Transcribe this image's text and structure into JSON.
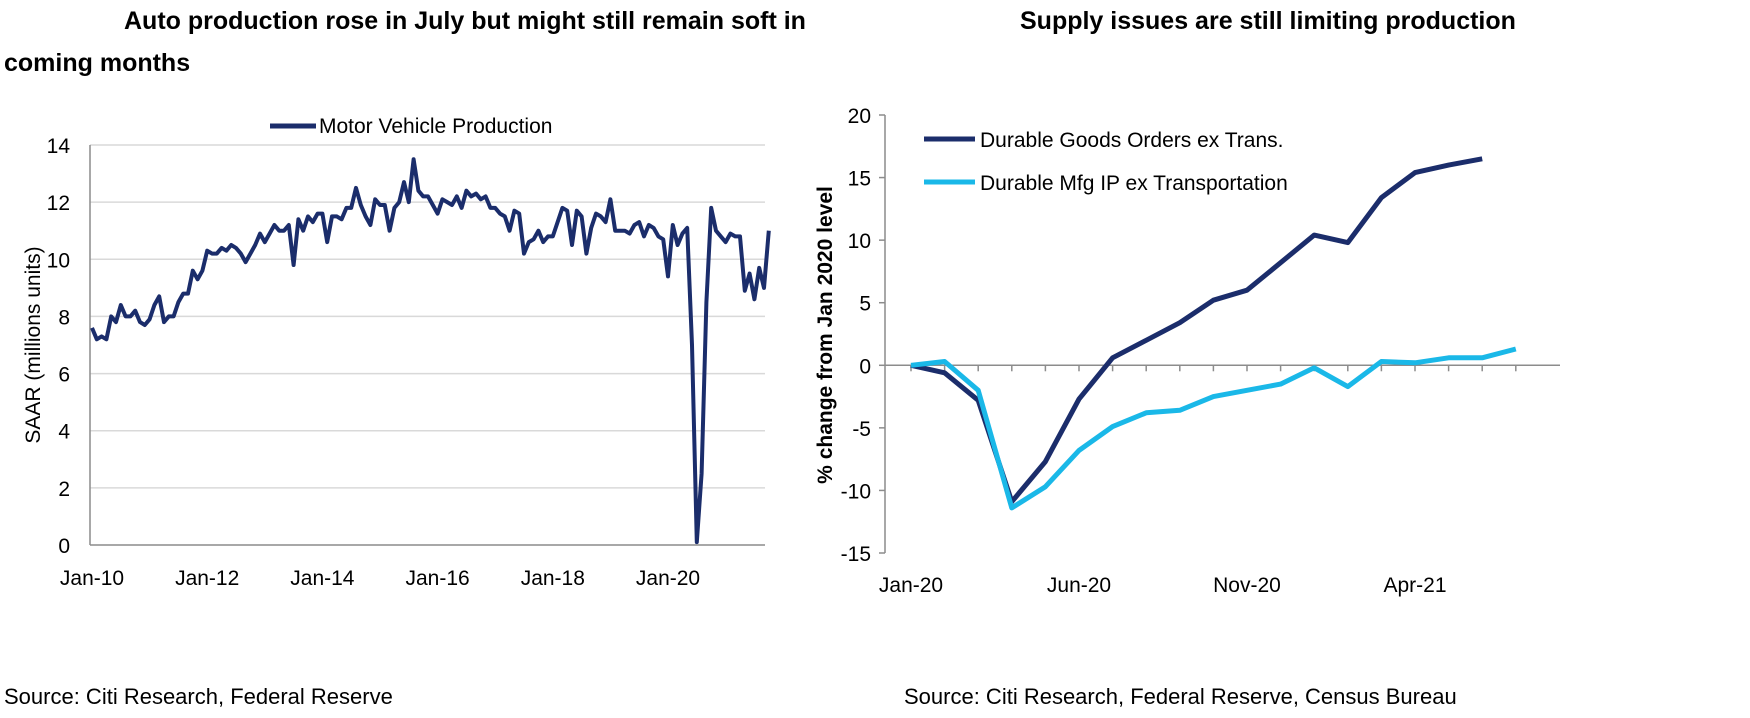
{
  "charts": [
    {
      "title": "Auto production rose in July but might still remain soft in coming months",
      "source": "Source: Citi Research, Federal Reserve",
      "colors": {
        "series": "#1B2D6B",
        "grid": "#D9D9D9",
        "axis": "#8C8C8C"
      },
      "legend_position": "top-center"
    },
    {
      "title": "Supply issues are still limiting production",
      "source": "Source: Citi Research, Federal Reserve, Census Bureau",
      "colors": {
        "series1": "#1B2D6B",
        "series2": "#1AB8E8",
        "axis": "#8C8C8C"
      },
      "legend_position": "top-left"
    }
  ],
  "chart_data": [
    {
      "type": "line",
      "title": "Auto production rose in July but might still remain soft in coming months",
      "xlabel": "",
      "ylabel": "SAAR (millions units)",
      "ylim": [
        0,
        14
      ],
      "yticks": [
        "0",
        "2",
        "4",
        "6",
        "8",
        "10",
        "12",
        "14"
      ],
      "xticks": [
        "Jan-10",
        "Jan-12",
        "Jan-14",
        "Jan-16",
        "Jan-18",
        "Jan-20"
      ],
      "grid": true,
      "x_start": "Jan-10",
      "frequency": "monthly",
      "series": [
        {
          "name": "Motor Vehicle Production",
          "values": [
            7.6,
            7.2,
            7.3,
            7.2,
            8.0,
            7.8,
            8.4,
            8.0,
            8.0,
            8.2,
            7.8,
            7.7,
            7.9,
            8.4,
            8.7,
            7.8,
            8.0,
            8.0,
            8.5,
            8.8,
            8.8,
            9.6,
            9.3,
            9.6,
            10.3,
            10.2,
            10.2,
            10.4,
            10.3,
            10.5,
            10.4,
            10.2,
            9.9,
            10.2,
            10.5,
            10.9,
            10.6,
            10.9,
            11.2,
            11.0,
            11.0,
            11.2,
            9.8,
            11.4,
            11.0,
            11.5,
            11.3,
            11.6,
            11.6,
            10.6,
            11.5,
            11.5,
            11.4,
            11.8,
            11.8,
            12.5,
            11.9,
            11.5,
            11.2,
            12.1,
            11.9,
            11.9,
            11.0,
            11.8,
            12.0,
            12.7,
            12.0,
            13.5,
            12.4,
            12.2,
            12.2,
            11.9,
            11.6,
            12.1,
            12.0,
            11.9,
            12.2,
            11.8,
            12.4,
            12.2,
            12.3,
            12.1,
            12.2,
            11.8,
            11.8,
            11.6,
            11.5,
            11.0,
            11.7,
            11.6,
            10.2,
            10.6,
            10.7,
            11.0,
            10.6,
            10.8,
            10.8,
            11.3,
            11.8,
            11.7,
            10.5,
            11.7,
            11.5,
            10.2,
            11.1,
            11.6,
            11.5,
            11.3,
            12.1,
            11.0,
            11.0,
            11.0,
            10.9,
            11.2,
            11.3,
            10.8,
            11.2,
            11.1,
            10.8,
            10.7,
            9.4,
            11.2,
            10.5,
            10.9,
            11.1,
            7.0,
            0.1,
            2.5,
            8.5,
            11.8,
            11.0,
            10.8,
            10.6,
            10.9,
            10.8,
            10.8,
            8.9,
            9.5,
            8.6,
            9.7,
            9.0,
            11.0
          ]
        }
      ]
    },
    {
      "type": "line",
      "title": "Supply issues are still limiting production",
      "xlabel": "",
      "ylabel": "% change from Jan 2020 level",
      "ylim": [
        -15,
        20
      ],
      "yticks": [
        "-15",
        "-10",
        "-5",
        "0",
        "5",
        "10",
        "15",
        "20"
      ],
      "xticks": [
        "Jan-20",
        "Jun-20",
        "Nov-20",
        "Apr-21"
      ],
      "x": [
        "Jan-20",
        "Feb-20",
        "Mar-20",
        "Apr-20",
        "May-20",
        "Jun-20",
        "Jul-20",
        "Aug-20",
        "Sep-20",
        "Oct-20",
        "Nov-20",
        "Dec-20",
        "Jan-21",
        "Feb-21",
        "Mar-21",
        "Apr-21",
        "May-21",
        "Jun-21",
        "Jul-21"
      ],
      "grid": false,
      "series": [
        {
          "name": "Durable Goods Orders ex Trans.",
          "values": [
            0.0,
            -0.6,
            -2.8,
            -10.9,
            -7.7,
            -2.7,
            0.6,
            2.0,
            3.4,
            5.2,
            6.0,
            8.2,
            10.4,
            9.8,
            13.4,
            15.4,
            16.0,
            16.5,
            null
          ]
        },
        {
          "name": "Durable Mfg IP ex Transportation",
          "values": [
            0.0,
            0.3,
            -2.0,
            -11.4,
            -9.7,
            -6.8,
            -4.9,
            -3.8,
            -3.6,
            -2.5,
            -2.0,
            -1.5,
            -0.2,
            -1.7,
            0.3,
            0.2,
            0.6,
            0.6,
            1.3
          ]
        }
      ]
    }
  ]
}
